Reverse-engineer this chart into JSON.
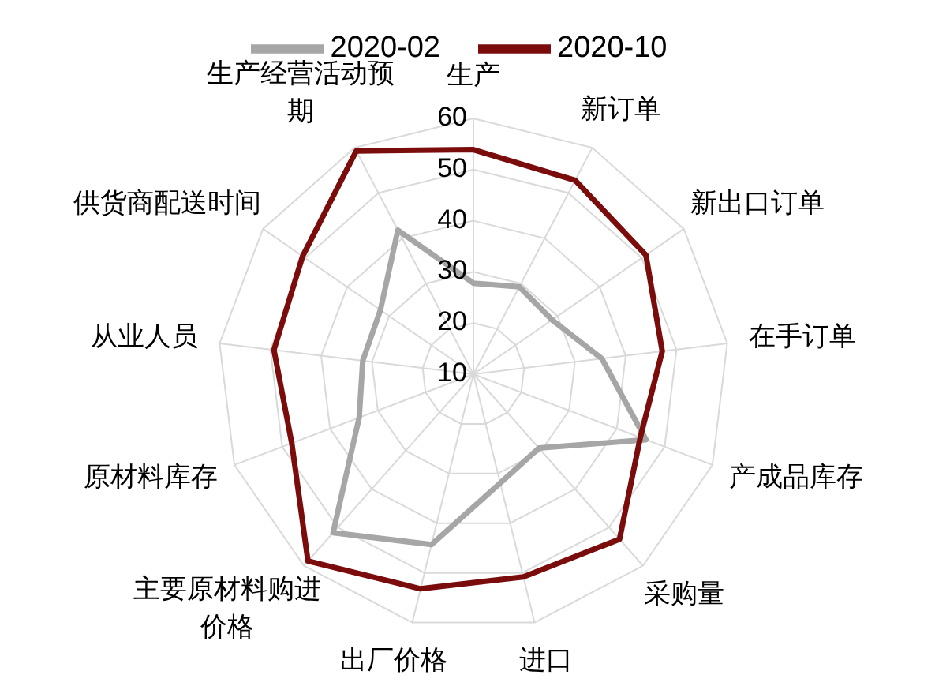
{
  "chart_data": {
    "type": "radar",
    "categories": [
      "生产",
      "新订单",
      "新出口订单",
      "在手订单",
      "产成品库存",
      "采购量",
      "进口",
      "出厂价格",
      "主要原材料购进价格",
      "原材料库存",
      "从业人员",
      "供货商配送时间",
      "生产经营活动预期"
    ],
    "series": [
      {
        "name": "2020-02",
        "color": "#a6a6a6",
        "values": [
          27.8,
          29.3,
          28.7,
          35.3,
          46.1,
          29.3,
          31.9,
          44.3,
          51.4,
          33.9,
          31.8,
          32.1,
          41.8
        ]
      },
      {
        "name": "2020-10",
        "color": "#7b0c0c",
        "values": [
          53.9,
          52.8,
          51.0,
          47.2,
          44.9,
          53.1,
          50.8,
          53.2,
          58.8,
          48.0,
          49.3,
          50.6,
          59.3
        ]
      }
    ],
    "ylim": [
      10,
      60
    ],
    "yticks": [
      10,
      20,
      30,
      40,
      50,
      60
    ],
    "grid": true,
    "legend": "top"
  }
}
